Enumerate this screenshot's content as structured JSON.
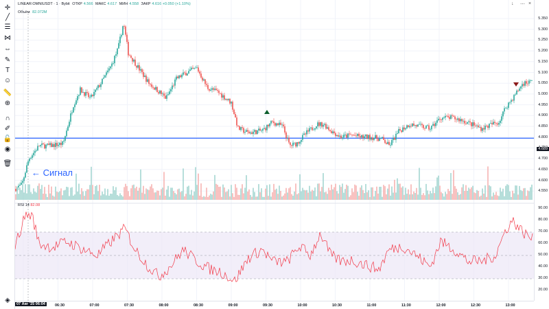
{
  "header": {
    "symbol": "LINEAR:OMNIUSDT · 1 · Bybit",
    "open_label": "ОТКР",
    "open_value": "4.566",
    "high_label": "МАКС",
    "high_value": "4.617",
    "low_label": "МИН",
    "low_value": "4.558",
    "close_label": "ЗАКР",
    "close_value": "4.616 +0.050 (+1.10%)",
    "volume_label": "Объём",
    "volume_value": "82.072M"
  },
  "price_scale": {
    "labels": [
      "5.350",
      "5.300",
      "5.250",
      "5.200",
      "5.150",
      "5.100",
      "5.050",
      "5.000",
      "4.950",
      "4.900",
      "4.850",
      "4.800",
      "4.750",
      "4.700",
      "4.650",
      "4.600",
      "4.550"
    ],
    "current_price": "4.689"
  },
  "rsi": {
    "label": "RSI 14",
    "value": "82.08",
    "scale_labels": [
      "90.00",
      "80.00",
      "70.00",
      "60.00",
      "50.00",
      "40.00",
      "30.00",
      "20.00"
    ]
  },
  "time_axis": {
    "current": "07 Авг '25   06:04",
    "labels": [
      "06:30",
      "07:00",
      "07:30",
      "08:00",
      "08:30",
      "09:00",
      "09:30",
      "10:00",
      "10:30",
      "11:00",
      "11:30",
      "12:00",
      "12:30",
      "13:00"
    ]
  },
  "annotation": {
    "signal_text": "← Сигнал"
  },
  "colors": {
    "up": "#26a69a",
    "down": "#ef5350",
    "horizontal_line": "#2962ff",
    "rsi_line": "#f23645",
    "rsi_band": "#7e57c2"
  },
  "icons": [
    "cursor-icon",
    "trendline-icon",
    "fib-icon",
    "pattern-icon",
    "measure-icon",
    "brush-icon",
    "text-icon",
    "emoji-icon",
    "ruler-icon",
    "zoom-icon",
    "magnet-icon",
    "lock-drawing-icon",
    "lock-icon",
    "eye-icon",
    "trash-icon",
    "object-tree-icon"
  ]
}
